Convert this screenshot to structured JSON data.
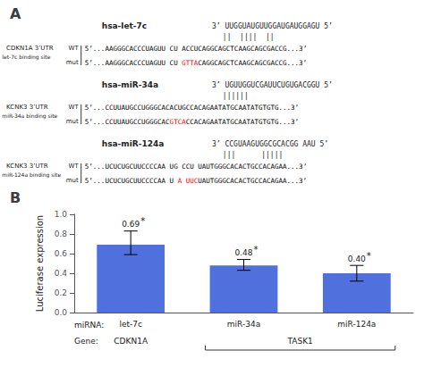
{
  "chart_data": [
    {
      "type": "text",
      "title": "A",
      "sections": [
        {
          "mirna_name": "hsa-let-7c",
          "mirna_seq": "3’ UUGGUAUGUUGGAUGAUGGAGU 5’",
          "binding": "||  ||||  ||",
          "gene": "CDKN1A 3’UTR",
          "site": "let-7c binding site",
          "rows": [
            {
              "label": "WT",
              "segments": [
                {
                  "text": "5’...AAGGGCACCCUAGUU CU ACCUCAGGCAGCTCAAGCAGCGACCG...3’"
                }
              ]
            },
            {
              "label": "mut",
              "segments": [
                {
                  "text": "5’...AAGGGCACCCUAGUU CU "
                },
                {
                  "text": "GTTA",
                  "color": "red"
                },
                {
                  "text": "CAGGCAGCTCAAGCAGCGACCG...3’"
                }
              ]
            }
          ]
        },
        {
          "mirna_name": "hsa-miR-34a",
          "mirna_seq": "3’ UGUUGGUCGAUUCUGUGACGGU 5’",
          "binding": "||||||",
          "gene": "KCNK3 3’UTR",
          "site": "miR-34a binding site",
          "rows": [
            {
              "label": "WT",
              "segments": [
                {
                  "text": "5’...CCUUAUGCCUGGGCACACUGCCACAGAATATGCAATATGTGTG...3’"
                }
              ]
            },
            {
              "label": "mut",
              "segments": [
                {
                  "text": "5’...CCUUAUGCCUGGGCAC"
                },
                {
                  "text": "GTCA",
                  "color": "red"
                },
                {
                  "text": "CCACAGAATATGCAATATGTGTG...3’"
                }
              ]
            }
          ]
        },
        {
          "mirna_name": "hsa-miR-124a",
          "mirna_seq": "3’ CCGUAAGUGGCGCACGG AAU 5’",
          "binding": "|||      |||||",
          "gene": "KCNK3 3’UTR",
          "site": "miR-124a binding site",
          "rows": [
            {
              "label": "WT",
              "segments": [
                {
                  "text": "5’...UCUCUGCUUCCCCAA UG CCU UAUTGGGCACACTGCCACAGAA...3’"
                }
              ]
            },
            {
              "label": "mut",
              "segments": [
                {
                  "text": "5’...UCUCUGCUUCCCCAA U "
                },
                {
                  "text": "A UUC",
                  "color": "red"
                },
                {
                  "text": "UAUTGGGCACACTGCCACAGAA...3’"
                }
              ]
            }
          ]
        }
      ]
    },
    {
      "type": "bar",
      "title": "B",
      "categories": [
        "let-7c",
        "miR-34a",
        "miR-124a"
      ],
      "xlabel": "miRNA:",
      "values": [
        0.69,
        0.48,
        0.4
      ],
      "value_labels": [
        "0.69",
        "0.48",
        "0.40"
      ],
      "data_labels": true,
      "annotations": [
        "*",
        "*",
        "*"
      ],
      "errors_upper": [
        0.14,
        0.06,
        0.08
      ],
      "errors_lower": [
        0.1,
        0.05,
        0.08
      ],
      "ylabel": "Luciferase expression",
      "ylim": [
        0.0,
        1.0
      ],
      "yticks": [
        {
          "value": 0.0,
          "label": "0.0"
        },
        0.2,
        0.4,
        0.6,
        0.8,
        {
          "value": 1.0,
          "label": "1.0"
        }
      ],
      "grid": false,
      "groups": {
        "label": "Gene:",
        "items": [
          {
            "text": "CDKN1A",
            "categories": [
              "let-7c"
            ]
          },
          {
            "text": "TASK1",
            "categories": [
              "miR-34a",
              "miR-124a"
            ]
          }
        ]
      }
    }
  ]
}
